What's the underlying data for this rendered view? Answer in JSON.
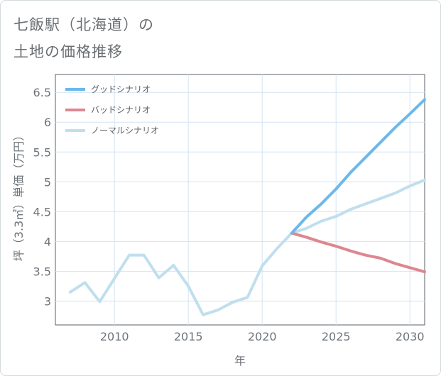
{
  "title_line1": "七飯駅（北海道）の",
  "title_line2": "土地の価格推移",
  "chart_data": {
    "type": "line",
    "xlabel": "年",
    "ylabel": "坪（3.3㎡）単価（万円）",
    "xlim": [
      2006,
      2031
    ],
    "ylim": [
      2.6,
      6.8
    ],
    "x_ticks": [
      2010,
      2015,
      2020,
      2025,
      2030
    ],
    "y_ticks": [
      3,
      3.5,
      4,
      4.5,
      5,
      5.5,
      6,
      6.5
    ],
    "grid": true,
    "legend_position": "top-left",
    "series": [
      {
        "name": "グッドシナリオ",
        "color": "#6cb8ea",
        "x": [
          2022,
          2023,
          2024,
          2025,
          2026,
          2027,
          2028,
          2029,
          2030,
          2031
        ],
        "values": [
          4.14,
          4.41,
          4.63,
          4.88,
          5.16,
          5.41,
          5.66,
          5.91,
          6.14,
          6.38
        ]
      },
      {
        "name": "バッドシナリオ",
        "color": "#dc8790",
        "x": [
          2022,
          2023,
          2024,
          2025,
          2026,
          2027,
          2028,
          2029,
          2030,
          2031
        ],
        "values": [
          4.14,
          4.07,
          3.99,
          3.92,
          3.84,
          3.77,
          3.72,
          3.63,
          3.56,
          3.49
        ]
      },
      {
        "name": "ノーマルシナリオ",
        "color": "#c0dfee",
        "x": [
          2007,
          2008,
          2009,
          2010,
          2011,
          2012,
          2013,
          2014,
          2015,
          2016,
          2017,
          2018,
          2019,
          2020,
          2021,
          2022,
          2023,
          2024,
          2025,
          2026,
          2027,
          2028,
          2029,
          2030,
          2031
        ],
        "values": [
          3.15,
          3.31,
          2.99,
          3.38,
          3.77,
          3.77,
          3.39,
          3.6,
          3.25,
          2.77,
          2.85,
          2.98,
          3.06,
          3.59,
          3.88,
          4.14,
          4.22,
          4.34,
          4.42,
          4.54,
          4.63,
          4.72,
          4.81,
          4.93,
          5.03
        ]
      }
    ]
  }
}
